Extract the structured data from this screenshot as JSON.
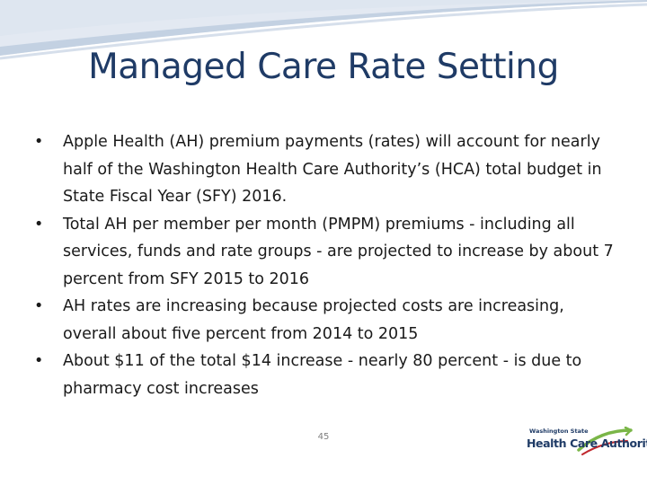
{
  "slide": {
    "title": "Managed Care Rate Setting",
    "bullet_glyph": "•",
    "bullets": [
      "Apple Health (AH) premium payments (rates) will account for nearly half of the Washington Health Care Authority’s (HCA) total budget in State Fiscal Year (SFY) 2016.",
      "Total AH per member per month (PMPM) premiums - including all services, funds and rate groups - are projected to increase by about 7 percent from SFY 2015 to 2016",
      "AH rates are increasing because projected costs are increasing, overall about five percent from 2014 to 2015",
      "About $11 of the total $14 increase - nearly 80 percent - is due to pharmacy cost increases"
    ],
    "page_number": "45"
  },
  "logo": {
    "small_text": "Washington State",
    "big_text": "Health Care Authority",
    "colors": {
      "navy": "#1f3b66",
      "green": "#7ab648",
      "red": "#c0272d"
    }
  },
  "theme": {
    "title_color": "#1f3b66",
    "swoosh_colors": [
      "#dbe4ef",
      "#c3d1e2",
      "#b2c4da"
    ]
  }
}
